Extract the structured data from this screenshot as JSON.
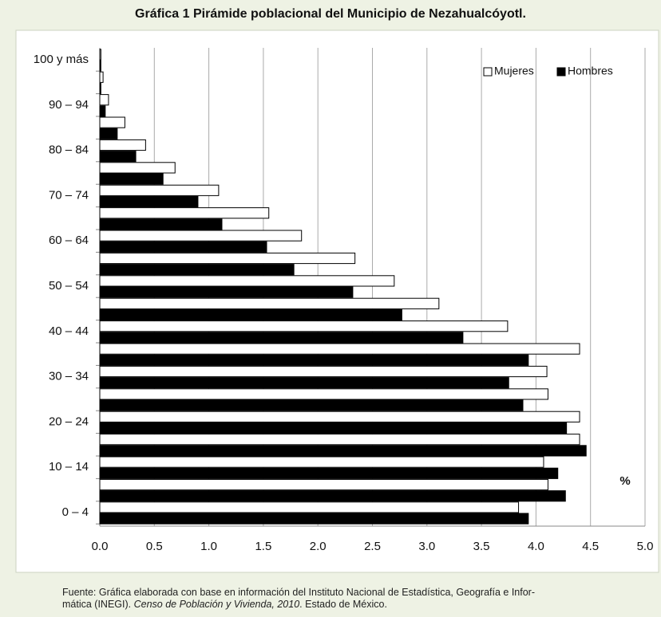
{
  "chart_data": {
    "type": "hbar",
    "title": "Gráfica 1 Pirámide poblacional del Municipio de Nezahualcóyotl.",
    "x_label": "%",
    "categories": [
      "0 – 4",
      null,
      "10 – 14",
      null,
      "20 – 24",
      null,
      "30 – 34",
      null,
      "40 – 44",
      null,
      "50 – 54",
      null,
      "60 – 64",
      null,
      "70 – 74",
      null,
      "80 – 84",
      null,
      "90 – 94",
      null,
      "100 y más"
    ],
    "series": [
      {
        "name": "Mujeres",
        "color": "#ffffff",
        "values": [
          3.84,
          4.11,
          4.07,
          4.4,
          4.4,
          4.11,
          4.1,
          4.4,
          3.74,
          3.11,
          2.7,
          2.34,
          1.85,
          1.55,
          1.09,
          0.69,
          0.42,
          0.23,
          0.08,
          0.03,
          0.01
        ]
      },
      {
        "name": "Hombres",
        "color": "#000000",
        "values": [
          3.93,
          4.27,
          4.2,
          4.46,
          4.28,
          3.88,
          3.75,
          3.93,
          3.33,
          2.77,
          2.32,
          1.78,
          1.53,
          1.12,
          0.9,
          0.58,
          0.33,
          0.16,
          0.05,
          0.01,
          0.01
        ]
      }
    ],
    "xlim": [
      0,
      5
    ],
    "xticks": [
      {
        "value": 0,
        "label": "0.0"
      },
      0.5,
      {
        "value": 1,
        "label": "1.0"
      },
      1.5,
      {
        "value": 2,
        "label": "2.0"
      },
      2.5,
      {
        "value": 3,
        "label": "3.0"
      },
      3.5,
      {
        "value": 4,
        "label": "4.0"
      },
      4.5,
      {
        "value": 5,
        "label": "5.0"
      }
    ],
    "grid": true,
    "legend": "top-right"
  },
  "source": {
    "line1": "Fuente: Gráfica elaborada con base en información del Instituto Nacional de Estadística, Geografía e Infor-",
    "line2_start": "mática (INEGI).",
    "line2_italic": "Censo de Población y Vivienda, 2010",
    "line2_end": ". Estado de México."
  }
}
